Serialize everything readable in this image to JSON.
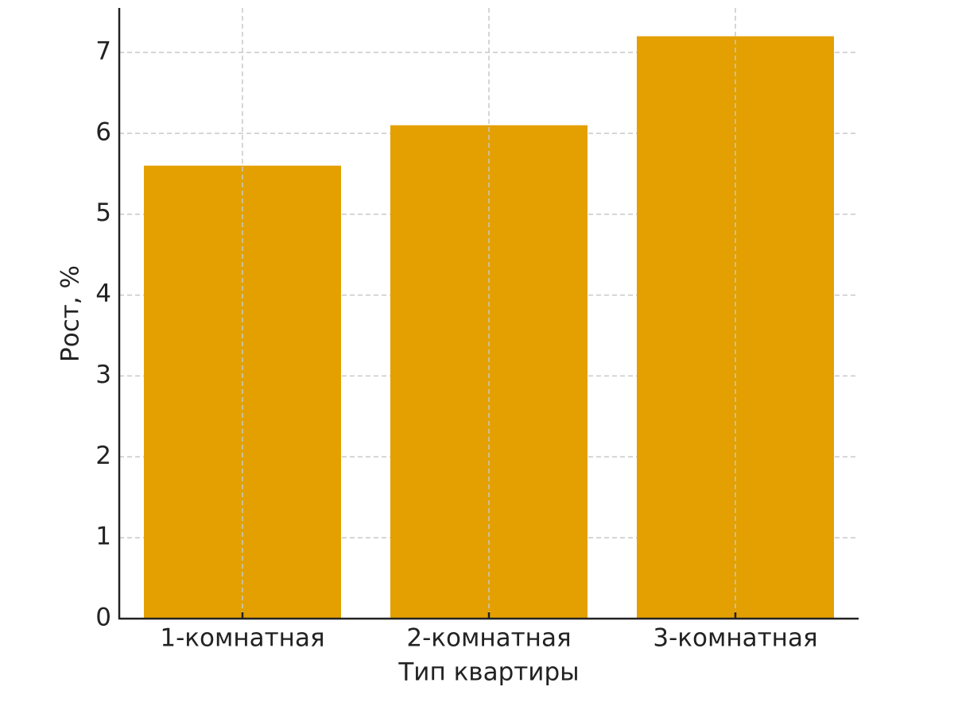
{
  "chart_data": {
    "type": "bar",
    "x_label": "Тип квартиры",
    "y_label": "Рост, %",
    "categories": [
      "1-комнатная",
      "2-комнатная",
      "3-комнатная"
    ],
    "values": [
      5.6,
      6.1,
      7.2
    ],
    "color": "#e3a000",
    "ylim": [
      0,
      7.55
    ],
    "yticks": [
      0,
      1,
      2,
      3,
      4,
      5,
      6,
      7
    ],
    "grid": true
  }
}
